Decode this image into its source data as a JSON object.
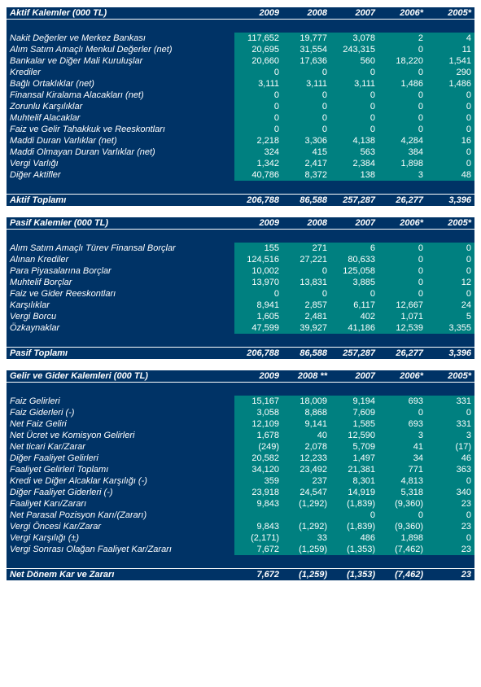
{
  "colors": {
    "dark": "#003366",
    "teal": "#008080",
    "text": "#ffffff"
  },
  "years": [
    "2009",
    "2008",
    "2007",
    "2006*",
    "2005*"
  ],
  "years2": [
    "2009",
    "2008 **",
    "2007",
    "2006*",
    "2005*"
  ],
  "section1": {
    "title": "Aktif Kalemler (000 TL)",
    "rows": [
      {
        "l": "Nakit Değerler ve Merkez Bankası",
        "v": [
          "117,652",
          "19,777",
          "3,078",
          "2",
          "4"
        ]
      },
      {
        "l": "Alım Satım Amaçlı Menkul Değerler (net)",
        "v": [
          "20,695",
          "31,554",
          "243,315",
          "0",
          "11"
        ]
      },
      {
        "l": "Bankalar ve Diğer Mali Kuruluşlar",
        "v": [
          "20,660",
          "17,636",
          "560",
          "18,220",
          "1,541"
        ]
      },
      {
        "l": "Krediler",
        "v": [
          "0",
          "0",
          "0",
          "0",
          "290"
        ]
      },
      {
        "l": "Bağlı Ortaklıklar (net)",
        "v": [
          "3,111",
          "3,111",
          "3,111",
          "1,486",
          "1,486"
        ]
      },
      {
        "l": "Finansal Kiralama Alacakları (net)",
        "v": [
          "0",
          "0",
          "0",
          "0",
          "0"
        ]
      },
      {
        "l": "Zorunlu Karşılıklar",
        "v": [
          "0",
          "0",
          "0",
          "0",
          "0"
        ]
      },
      {
        "l": "Muhtelif Alacaklar",
        "v": [
          "0",
          "0",
          "0",
          "0",
          "0"
        ]
      },
      {
        "l": "Faiz ve Gelir Tahakkuk ve Reeskontları",
        "v": [
          "0",
          "0",
          "0",
          "0",
          "0"
        ]
      },
      {
        "l": "Maddi Duran Varlıklar (net)",
        "v": [
          "2,218",
          "3,306",
          "4,138",
          "4,284",
          "16"
        ]
      },
      {
        "l": "Maddi Olmayan Duran Varlıklar (net)",
        "v": [
          "324",
          "415",
          "563",
          "384",
          "0"
        ]
      },
      {
        "l": "Vergi Varlığı",
        "v": [
          "1,342",
          "2,417",
          "2,384",
          "1,898",
          "0"
        ]
      },
      {
        "l": "Diğer Aktifler",
        "v": [
          "40,786",
          "8,372",
          "138",
          "3",
          "48"
        ]
      }
    ],
    "total": {
      "l": "Aktif Toplamı",
      "v": [
        "206,788",
        "86,588",
        "257,287",
        "26,277",
        "3,396"
      ]
    }
  },
  "section2": {
    "title": "Pasif Kalemler (000 TL)",
    "rows": [
      {
        "l": "Alım Satım Amaçlı Türev Finansal Borçlar",
        "v": [
          "155",
          "271",
          "6",
          "0",
          "0"
        ]
      },
      {
        "l": "Alınan Krediler",
        "v": [
          "124,516",
          "27,221",
          "80,633",
          "0",
          "0"
        ]
      },
      {
        "l": "Para Piyasalarına Borçlar",
        "v": [
          "10,002",
          "0",
          "125,058",
          "0",
          "0"
        ]
      },
      {
        "l": "Muhtelif Borçlar",
        "v": [
          "13,970",
          "13,831",
          "3,885",
          "0",
          "12"
        ]
      },
      {
        "l": "Faiz ve Gider Reeskontları",
        "v": [
          "0",
          "0",
          "0",
          "0",
          "0"
        ]
      },
      {
        "l": "Karşılıklar",
        "v": [
          "8,941",
          "2,857",
          "6,117",
          "12,667",
          "24"
        ]
      },
      {
        "l": "Vergi Borcu",
        "v": [
          "1,605",
          "2,481",
          "402",
          "1,071",
          "5"
        ]
      },
      {
        "l": "Özkaynaklar",
        "v": [
          "47,599",
          "39,927",
          "41,186",
          "12,539",
          "3,355"
        ]
      }
    ],
    "total": {
      "l": "Pasif Toplamı",
      "v": [
        "206,788",
        "86,588",
        "257,287",
        "26,277",
        "3,396"
      ]
    }
  },
  "section3": {
    "title": "Gelir ve Gider Kalemleri (000 TL)",
    "rows": [
      {
        "l": "Faiz Gelirleri",
        "v": [
          "15,167",
          "18,009",
          "9,194",
          "693",
          "331"
        ]
      },
      {
        "l": "Faiz Giderleri (-)",
        "v": [
          "3,058",
          "8,868",
          "7,609",
          "0",
          "0"
        ]
      },
      {
        "l": "Net Faiz Geliri",
        "v": [
          "12,109",
          "9,141",
          "1,585",
          "693",
          "331"
        ]
      },
      {
        "l": "Net Ücret ve Komisyon Gelirleri",
        "v": [
          "1,678",
          "40",
          "12,590",
          "3",
          "3"
        ]
      },
      {
        "l": "Net ticari Kar/Zarar",
        "v": [
          "(249)",
          "2,078",
          "5,709",
          "41",
          "(17)"
        ]
      },
      {
        "l": "Diğer Faaliyet Gelirleri",
        "v": [
          "20,582",
          "12,233",
          "1,497",
          "34",
          "46"
        ]
      },
      {
        "l": "Faaliyet Gelirleri Toplamı",
        "v": [
          "34,120",
          "23,492",
          "21,381",
          "771",
          "363"
        ]
      },
      {
        "l": "Kredi ve Diğer Alcaklar Karşılığı (-)",
        "v": [
          "359",
          "237",
          "8,301",
          "4,813",
          "0"
        ]
      },
      {
        "l": "Diğer Faaliyet Giderleri (-)",
        "v": [
          "23,918",
          "24,547",
          "14,919",
          "5,318",
          "340"
        ]
      },
      {
        "l": "Faaliyet Karı/Zararı",
        "v": [
          "9,843",
          "(1,292)",
          "(1,839)",
          "(9,360)",
          "23"
        ]
      },
      {
        "l": "Net Parasal Pozisyon Karı/(Zararı)",
        "v": [
          "",
          "",
          "0",
          "0",
          "0"
        ]
      },
      {
        "l": "Vergi Öncesi Kar/Zarar",
        "v": [
          "9,843",
          "(1,292)",
          "(1,839)",
          "(9,360)",
          "23"
        ]
      },
      {
        "l": "Vergi Karşılığı (±)",
        "v": [
          "(2,171)",
          "33",
          "486",
          "1,898",
          "0"
        ]
      },
      {
        "l": "Vergi Sonrası Olağan Faaliyet Kar/Zararı",
        "v": [
          "7,672",
          "(1,259)",
          "(1,353)",
          "(7,462)",
          "23"
        ]
      }
    ],
    "total": {
      "l": "Net Dönem Kar ve Zararı",
      "v": [
        "7,672",
        "(1,259)",
        "(1,353)",
        "(7,462)",
        "23"
      ]
    }
  }
}
